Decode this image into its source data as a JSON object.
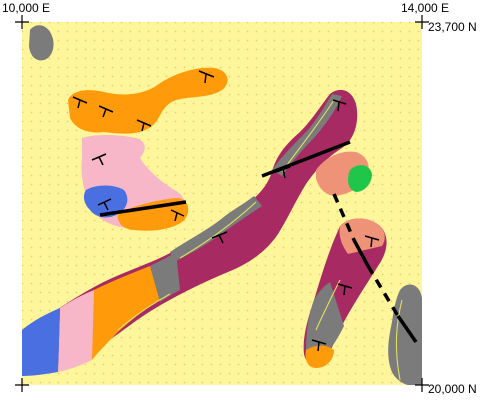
{
  "map": {
    "corner_labels": {
      "top_left_easting": "10,000 E",
      "top_right_easting": "14,000 E",
      "top_right_northing": "23,700 N",
      "bottom_right_northing": "20,000 N"
    },
    "colors": {
      "background": "#fff59a",
      "dot": "#e7cf72",
      "orange": "#ff9a0a",
      "magenta": "#a82a62",
      "gray": "#7b7b7b",
      "pink": "#f8b6c9",
      "blue": "#4a6fe0",
      "salmon": "#ee9278",
      "green": "#20c64a",
      "contact_line": "#e0e060",
      "fault": "#000000"
    },
    "legend_symbols": [
      "strike-dip-symbol",
      "fault-solid",
      "fault-dashed",
      "map-corner-cross"
    ]
  }
}
